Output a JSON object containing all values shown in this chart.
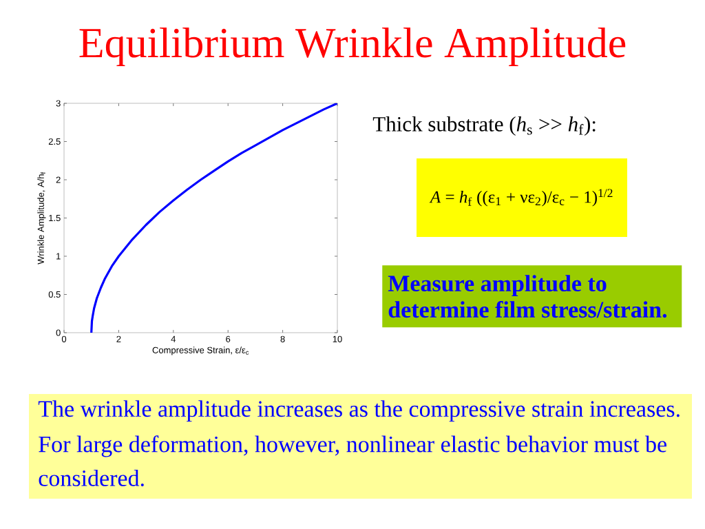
{
  "chart_data": {
    "type": "line",
    "title": "Equilibrium Wrinkle Amplitude",
    "xlabel": "Compressive Strain, ε/ε$_{c}$",
    "ylabel": "Wrinkle Amplitude, A/h$_{f}$",
    "x": [
      1,
      1.02,
      1.05,
      1.1,
      1.2,
      1.35,
      1.5,
      1.75,
      2,
      2.5,
      3,
      3.5,
      4,
      4.5,
      5,
      5.5,
      6,
      6.5,
      7,
      7.5,
      8,
      8.5,
      9,
      9.5,
      10
    ],
    "values": [
      0,
      0.15,
      0.22,
      0.32,
      0.45,
      0.59,
      0.71,
      0.87,
      1,
      1.22,
      1.41,
      1.58,
      1.73,
      1.87,
      2,
      2.12,
      2.24,
      2.35,
      2.45,
      2.55,
      2.65,
      2.74,
      2.83,
      2.92,
      3
    ],
    "color": "#0000ff",
    "xlim": [
      0,
      10
    ],
    "ylim": [
      0,
      3
    ],
    "xticks": [
      0,
      2,
      4,
      6,
      8,
      10
    ],
    "yticks": [
      0,
      0.5,
      1,
      1.5,
      2,
      2.5,
      3
    ],
    "annotations": [
      "Thick substrate (*h*$_{s}$ >> *h*$_{f}$):",
      "*A* = *h*$_{f}$ ((ε$_{1}$ + νε$_{2}$)/ε$_{c}$ − 1)$^{1/2}$",
      "Measure amplitude to determine film stress/strain.",
      "The wrinkle amplitude increases as the compressive strain increases.",
      "For large deformation, however, nonlinear elastic behavior must be considered."
    ]
  }
}
